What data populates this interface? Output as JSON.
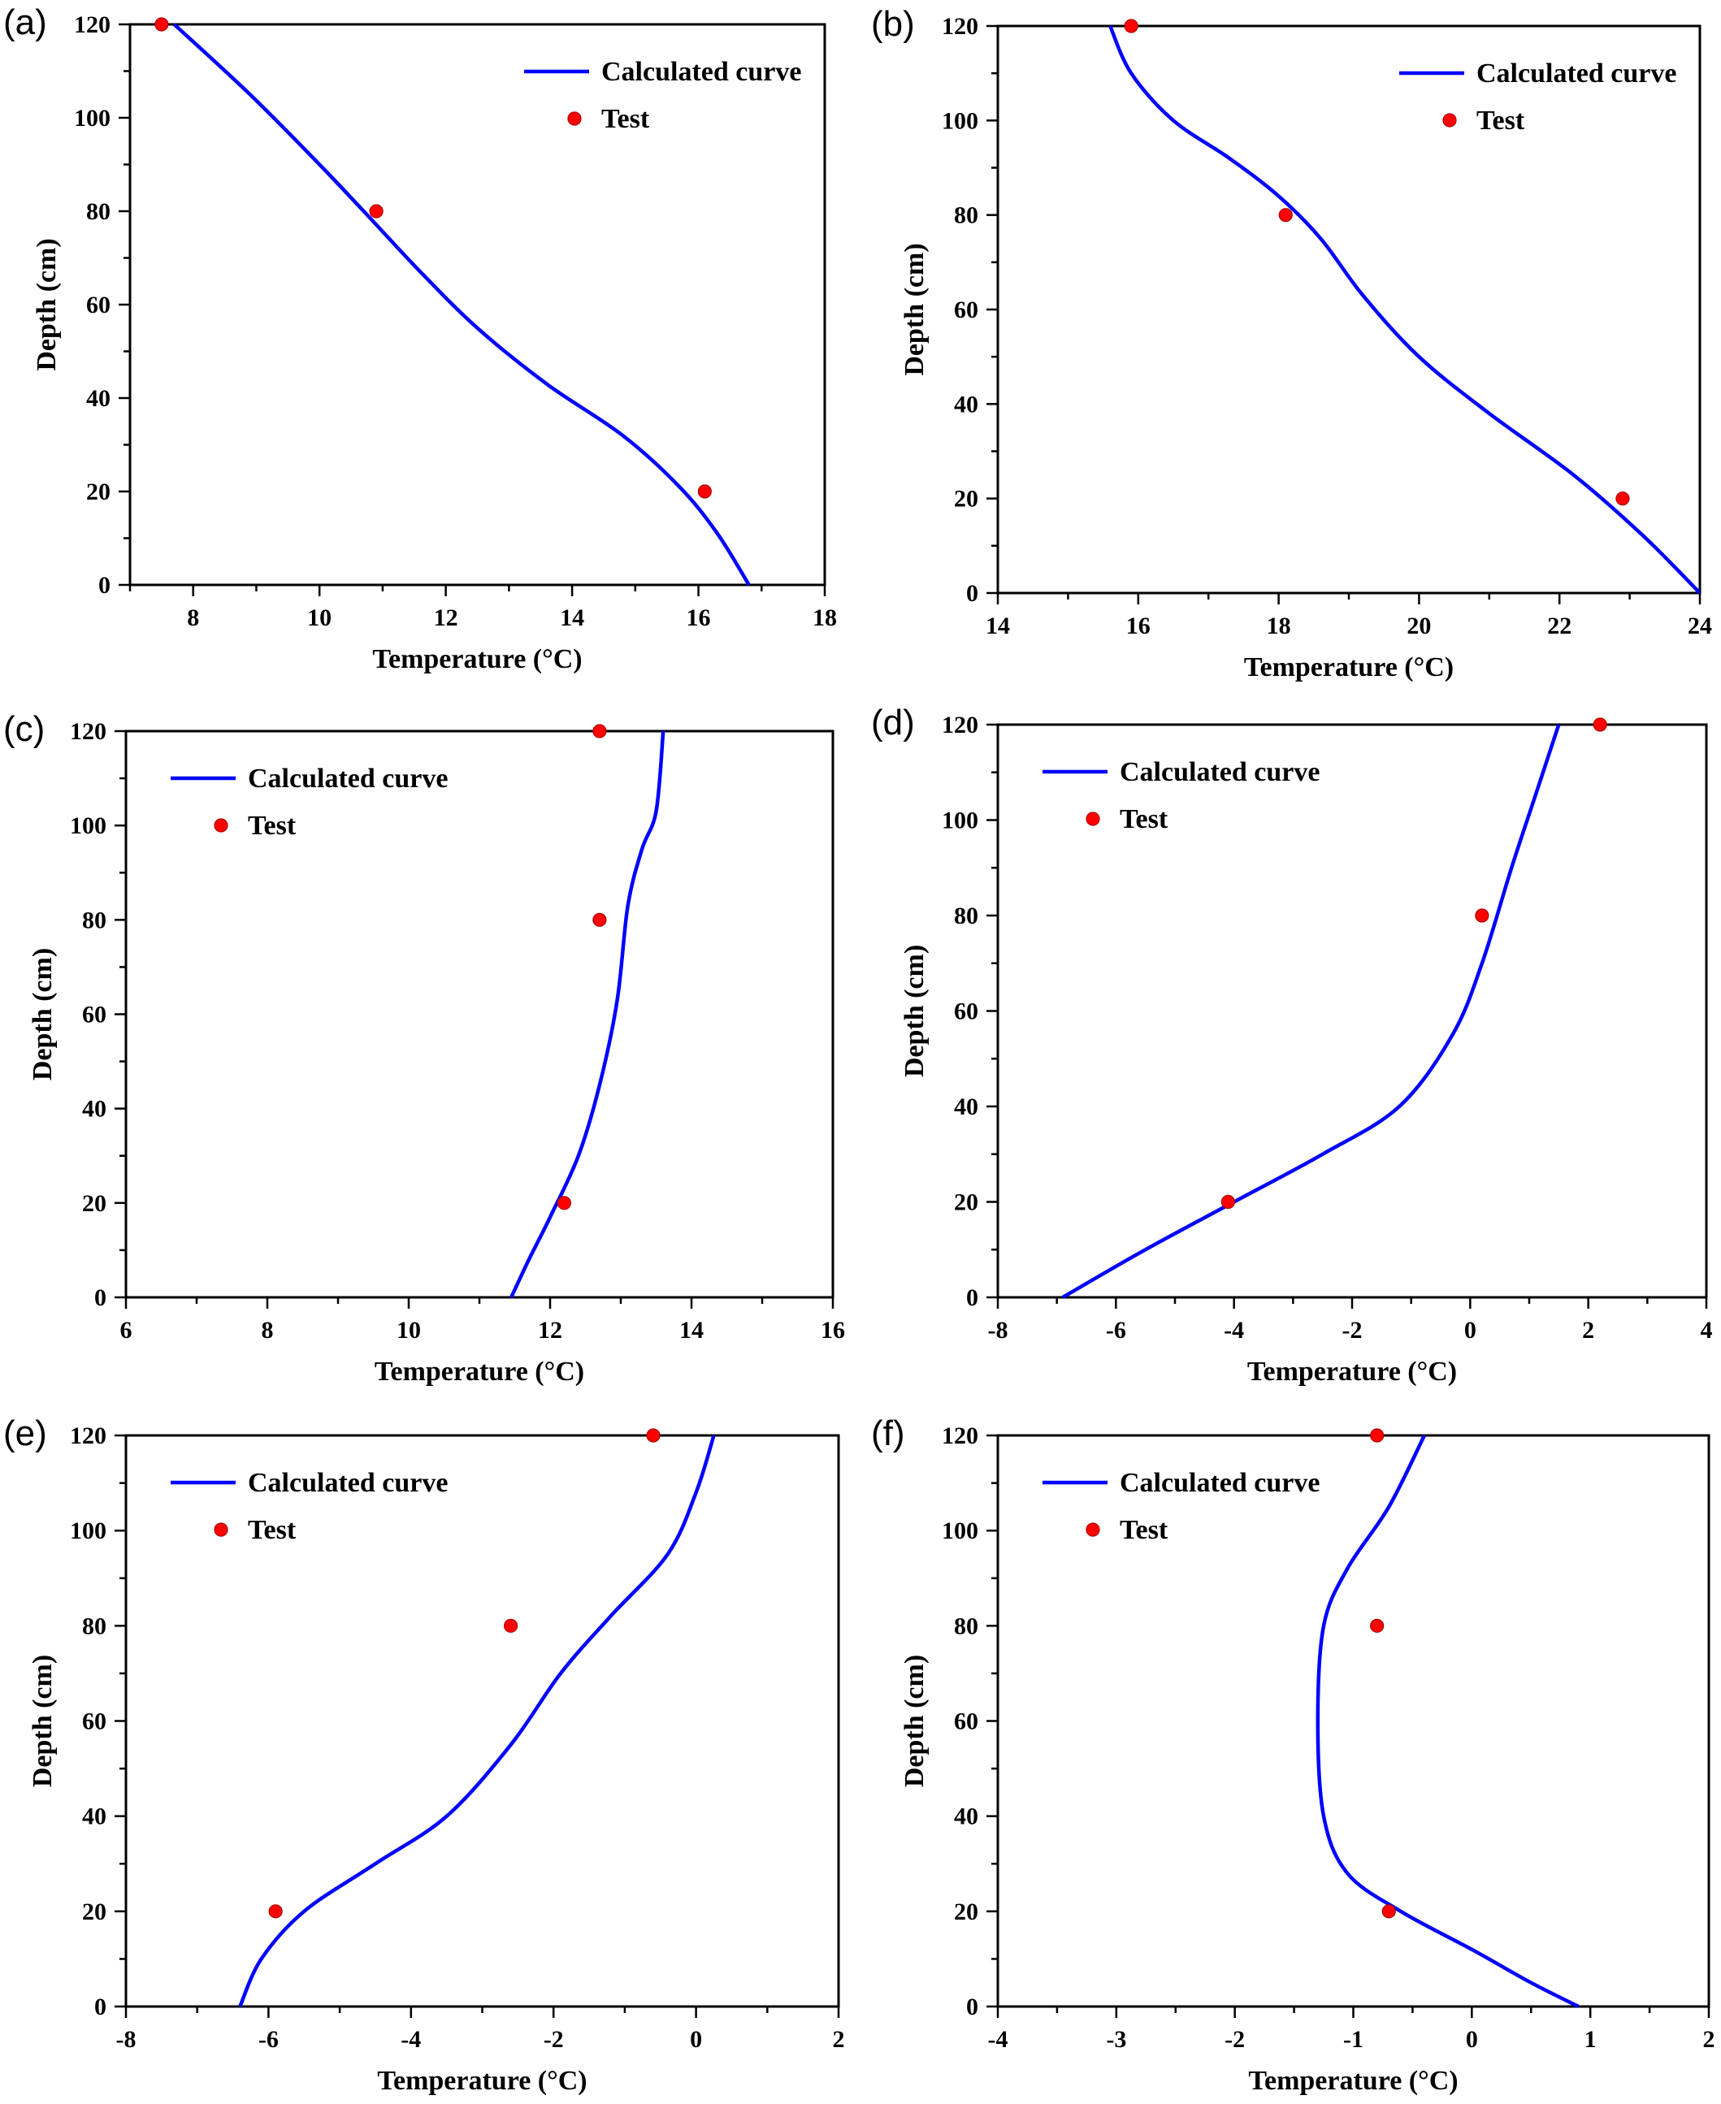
{
  "colors": {
    "curve": "#0000ff",
    "test": "#ff0000",
    "axis": "#000000"
  },
  "legend": {
    "curve_label": "Calculated curve",
    "test_label": "Test"
  },
  "xlabel": "Temperature (°C)",
  "ylabel": "Depth (cm)",
  "chart_data": [
    {
      "panel": "(a)",
      "type": "line",
      "xlabel": "Temperature (°C)",
      "ylabel": "Depth (cm)",
      "xlim": [
        7,
        18
      ],
      "ylim": [
        0,
        120
      ],
      "xticks": [
        8,
        10,
        12,
        14,
        16,
        18
      ],
      "yticks": [
        0,
        20,
        40,
        60,
        80,
        100,
        120
      ],
      "series": [
        {
          "name": "Calculated curve",
          "type": "line",
          "x": [
            7.7,
            8.9,
            10.0,
            10.7,
            11.6,
            12.5,
            13.6,
            14.8,
            15.7,
            16.3,
            16.8
          ],
          "y": [
            120,
            105,
            90,
            80,
            67,
            55,
            43,
            32,
            21,
            11,
            0
          ]
        },
        {
          "name": "Test",
          "type": "scatter",
          "x": [
            7.5,
            10.9,
            16.1
          ],
          "y": [
            120,
            80,
            20
          ]
        }
      ],
      "legend_position": "top-right"
    },
    {
      "panel": "(b)",
      "type": "line",
      "xlabel": "Temperature (°C)",
      "ylabel": "Depth (cm)",
      "xlim": [
        14,
        24
      ],
      "ylim": [
        0,
        120
      ],
      "xticks": [
        14,
        16,
        18,
        20,
        22,
        24
      ],
      "yticks": [
        0,
        20,
        40,
        60,
        80,
        100,
        120
      ],
      "series": [
        {
          "name": "Calculated curve",
          "type": "line",
          "x": [
            15.6,
            15.9,
            16.5,
            17.3,
            18.0,
            18.6,
            19.2,
            20.0,
            21.0,
            22.2,
            23.2,
            24.0
          ],
          "y": [
            120,
            110,
            100,
            92,
            84,
            75,
            63,
            50,
            38,
            25,
            12,
            0
          ]
        },
        {
          "name": "Test",
          "type": "scatter",
          "x": [
            15.9,
            18.1,
            22.9
          ],
          "y": [
            120,
            80,
            20
          ]
        }
      ],
      "legend_position": "top-right"
    },
    {
      "panel": "(c)",
      "type": "line",
      "xlabel": "Temperature (°C)",
      "ylabel": "Depth (cm)",
      "xlim": [
        6,
        16
      ],
      "ylim": [
        0,
        120
      ],
      "xticks": [
        6,
        8,
        10,
        12,
        14,
        16
      ],
      "yticks": [
        0,
        20,
        40,
        60,
        80,
        100,
        120
      ],
      "series": [
        {
          "name": "Calculated curve",
          "type": "line",
          "x": [
            13.6,
            13.5,
            13.3,
            13.1,
            12.95,
            12.7,
            12.4,
            12.0,
            11.7,
            11.45
          ],
          "y": [
            120,
            103,
            95,
            83,
            63,
            45,
            30,
            17,
            8,
            0
          ]
        },
        {
          "name": "Test",
          "type": "scatter",
          "x": [
            12.7,
            12.7,
            12.2
          ],
          "y": [
            120,
            80,
            20
          ]
        }
      ],
      "legend_position": "top-left"
    },
    {
      "panel": "(d)",
      "type": "line",
      "xlabel": "Temperature (°C)",
      "ylabel": "Depth (cm)",
      "xlim": [
        -8,
        4
      ],
      "ylim": [
        0,
        120
      ],
      "xticks": [
        -8,
        -6,
        -4,
        -2,
        0,
        2,
        4
      ],
      "yticks": [
        0,
        20,
        40,
        60,
        80,
        100,
        120
      ],
      "series": [
        {
          "name": "Calculated curve",
          "type": "line",
          "x": [
            -6.9,
            -5.5,
            -4.0,
            -2.5,
            -1.2,
            -0.3,
            0.2,
            0.7,
            1.1,
            1.5
          ],
          "y": [
            0,
            10,
            20,
            30,
            40,
            55,
            70,
            90,
            105,
            120
          ]
        },
        {
          "name": "Test",
          "type": "scatter",
          "x": [
            2.2,
            0.2,
            -4.1
          ],
          "y": [
            120,
            80,
            20
          ]
        }
      ],
      "legend_position": "top-left"
    },
    {
      "panel": "(e)",
      "type": "line",
      "xlabel": "Temperature (°C)",
      "ylabel": "Depth (cm)",
      "xlim": [
        -8,
        2
      ],
      "ylim": [
        0,
        120
      ],
      "xticks": [
        -8,
        -6,
        -4,
        -2,
        0,
        2
      ],
      "yticks": [
        0,
        20,
        40,
        60,
        80,
        100,
        120
      ],
      "series": [
        {
          "name": "Calculated curve",
          "type": "line",
          "x": [
            -6.4,
            -6.1,
            -5.5,
            -4.5,
            -3.5,
            -2.6,
            -1.9,
            -1.2,
            -0.4,
            0.0,
            0.25
          ],
          "y": [
            0,
            10,
            20,
            30,
            40,
            55,
            70,
            82,
            95,
            108,
            120
          ]
        },
        {
          "name": "Test",
          "type": "scatter",
          "x": [
            -0.6,
            -2.6,
            -5.9
          ],
          "y": [
            120,
            80,
            20
          ]
        }
      ],
      "legend_position": "top-left"
    },
    {
      "panel": "(f)",
      "type": "line",
      "xlabel": "Temperature (°C)",
      "ylabel": "Depth (cm)",
      "xlim": [
        -4,
        2
      ],
      "ylim": [
        0,
        120
      ],
      "xticks": [
        -4,
        -3,
        -2,
        -1,
        0,
        1,
        2
      ],
      "yticks": [
        0,
        20,
        40,
        60,
        80,
        100,
        120
      ],
      "series": [
        {
          "name": "Calculated curve",
          "type": "line",
          "x": [
            -0.4,
            -0.7,
            -1.05,
            -1.25,
            -1.3,
            -1.25,
            -1.05,
            -0.6,
            0.0,
            0.5,
            0.9
          ],
          "y": [
            120,
            105,
            92,
            80,
            60,
            40,
            28,
            20,
            12,
            5,
            0
          ]
        },
        {
          "name": "Test",
          "type": "scatter",
          "x": [
            -0.8,
            -0.8,
            -0.7
          ],
          "y": [
            120,
            80,
            20
          ]
        }
      ],
      "legend_position": "top-left"
    }
  ]
}
